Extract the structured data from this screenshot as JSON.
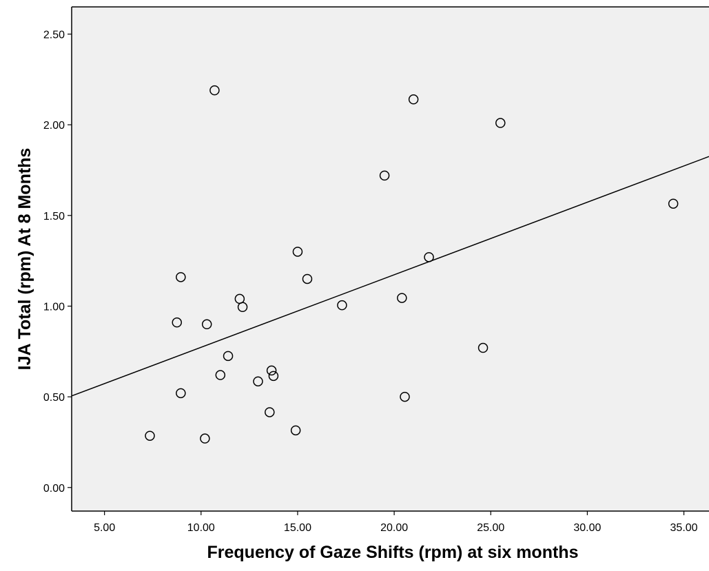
{
  "chart_data": {
    "type": "scatter",
    "title": "",
    "xlabel": "Frequency of Gaze Shifts (rpm) at six months",
    "ylabel": "IJA Total (rpm) At 8 Months",
    "xlim": [
      3.3,
      36.3
    ],
    "ylim": [
      -0.13,
      2.65
    ],
    "xticks": [
      "5.00",
      "10.00",
      "15.00",
      "20.00",
      "25.00",
      "30.00",
      "35.00"
    ],
    "yticks": [
      "0.00",
      "0.50",
      "1.00",
      "1.50",
      "2.00",
      "2.50"
    ],
    "grid": false,
    "background": "#f0f0f0",
    "points": [
      {
        "x": 7.35,
        "y": 0.285
      },
      {
        "x": 8.75,
        "y": 0.91
      },
      {
        "x": 8.95,
        "y": 1.16
      },
      {
        "x": 8.95,
        "y": 0.52
      },
      {
        "x": 10.2,
        "y": 0.27
      },
      {
        "x": 10.3,
        "y": 0.9
      },
      {
        "x": 10.7,
        "y": 2.19
      },
      {
        "x": 11.0,
        "y": 0.62
      },
      {
        "x": 11.4,
        "y": 0.725
      },
      {
        "x": 12.0,
        "y": 1.04
      },
      {
        "x": 12.15,
        "y": 0.995
      },
      {
        "x": 12.95,
        "y": 0.585
      },
      {
        "x": 13.55,
        "y": 0.415
      },
      {
        "x": 13.65,
        "y": 0.645
      },
      {
        "x": 13.75,
        "y": 0.615
      },
      {
        "x": 14.9,
        "y": 0.315
      },
      {
        "x": 15.0,
        "y": 1.3
      },
      {
        "x": 15.5,
        "y": 1.15
      },
      {
        "x": 17.3,
        "y": 1.005
      },
      {
        "x": 19.5,
        "y": 1.72
      },
      {
        "x": 20.4,
        "y": 1.045
      },
      {
        "x": 20.55,
        "y": 0.5
      },
      {
        "x": 21.0,
        "y": 2.14
      },
      {
        "x": 21.8,
        "y": 1.27
      },
      {
        "x": 24.6,
        "y": 0.77
      },
      {
        "x": 25.5,
        "y": 2.01
      },
      {
        "x": 34.45,
        "y": 1.565
      }
    ],
    "fit_line": {
      "x": [
        3.3,
        36.3
      ],
      "y": [
        0.505,
        1.825
      ]
    }
  }
}
